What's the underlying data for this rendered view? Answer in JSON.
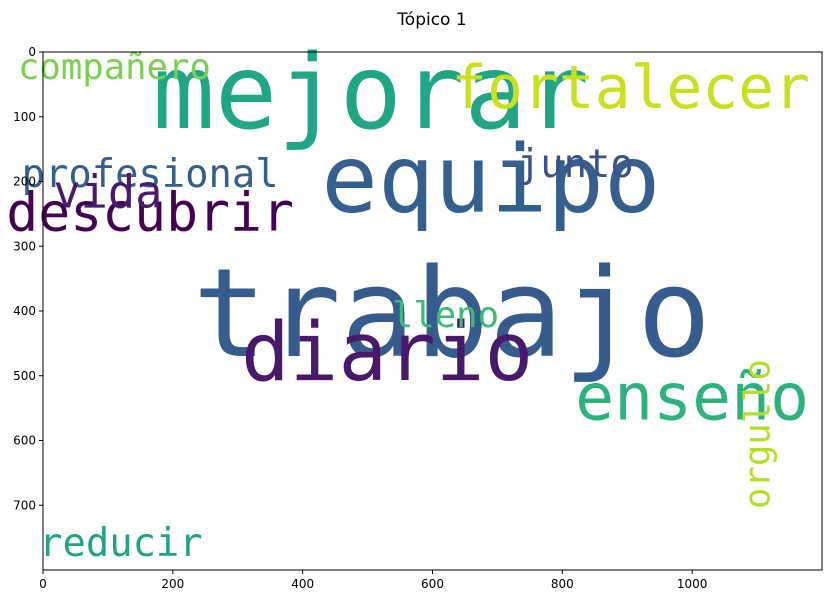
{
  "chart_data": {
    "type": "wordcloud",
    "title": "Tópico 1",
    "xlim": [
      0,
      1200
    ],
    "ylim": [
      800,
      0
    ],
    "xticks": [
      0,
      200,
      400,
      600,
      800,
      1000
    ],
    "yticks": [
      0,
      100,
      200,
      300,
      400,
      500,
      600,
      700
    ],
    "grid": false,
    "words": [
      {
        "text": "trabajo",
        "x": 630,
        "y": 330,
        "color": "#365c8d",
        "size": 190
      },
      {
        "text": "mejorar",
        "x": 505,
        "y": 0,
        "color": "#21a685",
        "size": 160
      },
      {
        "text": "equipo",
        "x": 690,
        "y": 140,
        "color": "#355f8d",
        "size": 145
      },
      {
        "text": "diario",
        "x": 530,
        "y": 415,
        "color": "#48186a",
        "size": 125
      },
      {
        "text": "enseño",
        "x": 1000,
        "y": 495,
        "color": "#2db27d",
        "size": 100
      },
      {
        "text": "fortalecer",
        "x": 905,
        "y": 20,
        "color": "#c8e020",
        "size": 92
      },
      {
        "text": "descubrir",
        "x": 165,
        "y": 215,
        "color": "#440154",
        "size": 82
      },
      {
        "text": "profesional",
        "x": 165,
        "y": 165,
        "color": "#355f8d",
        "size": 60
      },
      {
        "text": "vida",
        "x": 100,
        "y": 188,
        "color": "#481b6d",
        "size": 70
      },
      {
        "text": "compañero",
        "x": 110,
        "y": 2,
        "color": "#7ad151",
        "size": 55
      },
      {
        "text": "junto",
        "x": 820,
        "y": 150,
        "color": "#3b528b",
        "size": 60
      },
      {
        "text": "lleno",
        "x": 620,
        "y": 385,
        "color": "#3bbb75",
        "size": 55
      },
      {
        "text": "orgullo",
        "x": 1080,
        "y": 590,
        "color": "#b5de2b",
        "size": 55
      },
      {
        "text": "reducir",
        "x": 120,
        "y": 735,
        "color": "#20a386",
        "size": 60
      }
    ]
  }
}
